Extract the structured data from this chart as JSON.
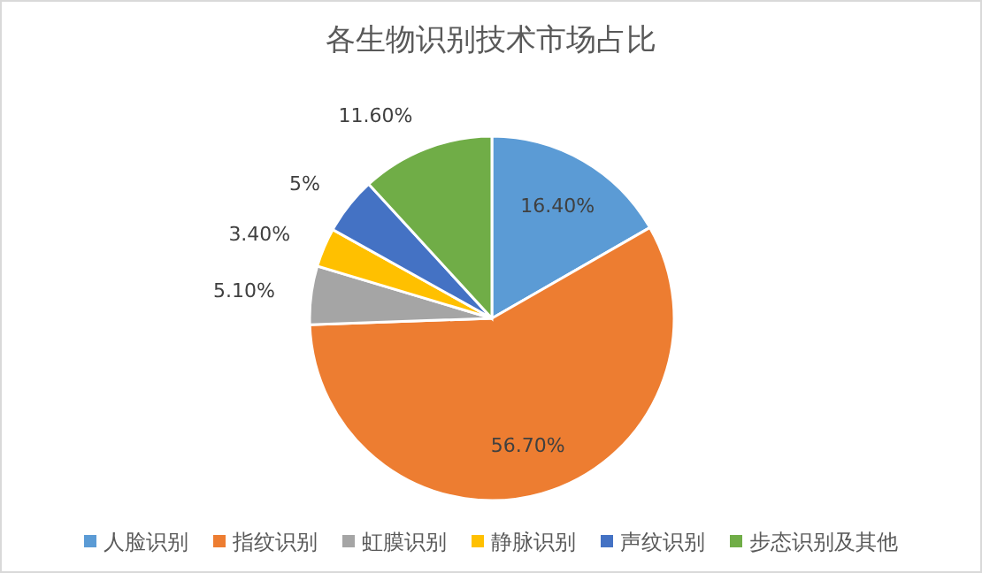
{
  "chart_data": {
    "type": "pie",
    "title": "各生物识别技术市场占比",
    "categories": [
      "人脸识别",
      "指纹识别",
      "虹膜识别",
      "静脉识别",
      "声纹识别",
      "步态识别及其他"
    ],
    "values": [
      16.4,
      56.7,
      5.1,
      3.4,
      5,
      11.6
    ],
    "colors": [
      "#5b9bd5",
      "#ed7d31",
      "#a5a5a5",
      "#ffc000",
      "#4472c4",
      "#70ad47"
    ],
    "value_labels": [
      "16.40%",
      "56.70%",
      "5.10%",
      "3.40%",
      "5%",
      "11.60%"
    ],
    "legend": "bottom"
  }
}
